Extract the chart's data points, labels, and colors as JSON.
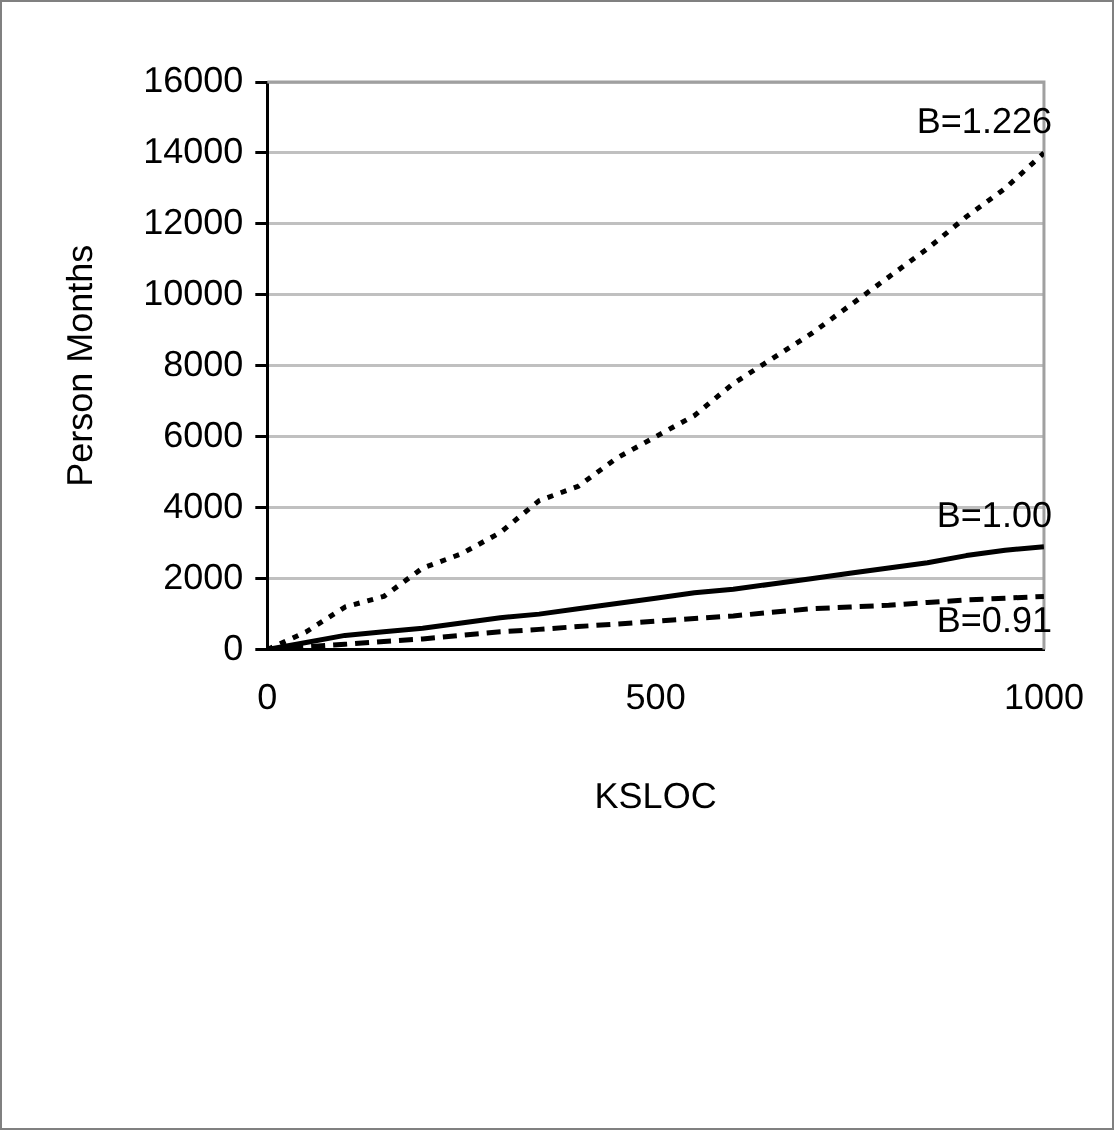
{
  "chart_data": {
    "type": "line",
    "xlabel": "KSLOC",
    "ylabel": "Person Months",
    "xlim": [
      0,
      1000
    ],
    "xticks": [
      0,
      500,
      1000
    ],
    "ylim": [
      0,
      16000
    ],
    "yticks": [
      0,
      2000,
      4000,
      6000,
      8000,
      10000,
      12000,
      14000,
      16000
    ],
    "grid": "y",
    "legend": false,
    "marker": "none",
    "x": [
      0,
      50,
      100,
      150,
      200,
      250,
      300,
      350,
      400,
      450,
      500,
      550,
      600,
      650,
      700,
      750,
      800,
      850,
      900,
      950,
      1000
    ],
    "series": [
      {
        "name": "B=1.226",
        "color": "#000000",
        "line_style": "dotted",
        "values": [
          0,
          500,
          1200,
          1500,
          2300,
          2700,
          3300,
          4200,
          4600,
          5400,
          6000,
          6600,
          7500,
          8200,
          8900,
          9700,
          10500,
          11300,
          12200,
          13000,
          14000
        ]
      },
      {
        "name": "B=1.00",
        "color": "#000000",
        "line_style": "solid",
        "values": [
          0,
          200,
          400,
          500,
          600,
          750,
          900,
          1000,
          1150,
          1300,
          1450,
          1600,
          1700,
          1850,
          2000,
          2150,
          2300,
          2450,
          2650,
          2800,
          2900
        ]
      },
      {
        "name": "B=0.91",
        "color": "#000000",
        "line_style": "dashed",
        "values": [
          0,
          80,
          150,
          230,
          300,
          400,
          500,
          570,
          650,
          720,
          800,
          880,
          950,
          1050,
          1150,
          1200,
          1250,
          1330,
          1400,
          1450,
          1500
        ]
      }
    ]
  }
}
